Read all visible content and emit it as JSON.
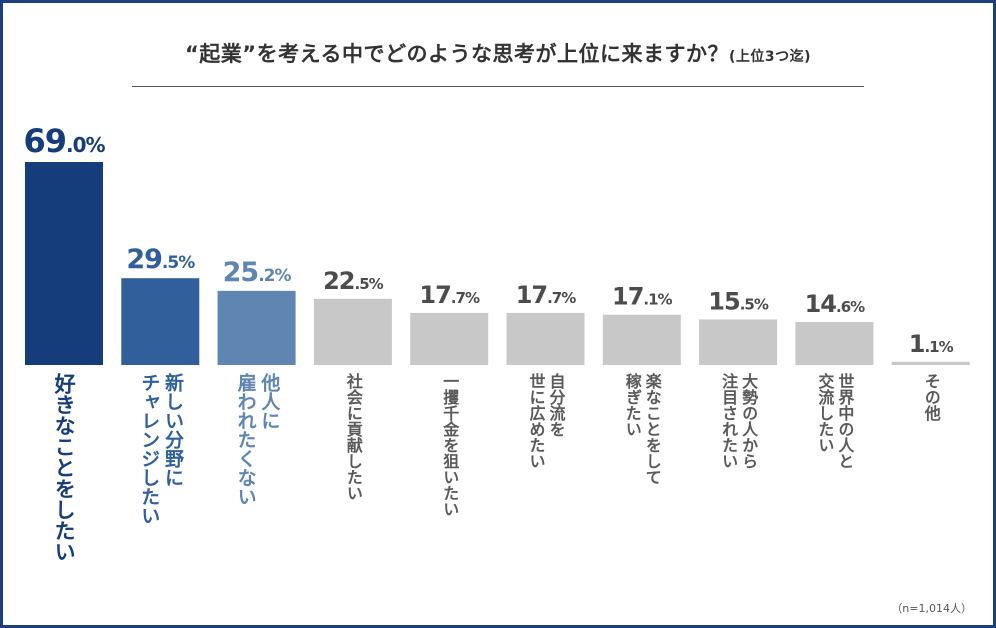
{
  "title": {
    "main": "“起業”を考える中でどのような思考が上位に来ますか？",
    "sub": "(上位3つ迄)"
  },
  "note": "（n=1,014人）",
  "colors": {
    "rank1": "#153c7b",
    "rank2": "#305f9b",
    "rank3": "#5f85b3",
    "other": "#c8c8c8",
    "value_other": "#4c4c4c",
    "label_other": "#5a5a5a",
    "frame": "#1b3f7f"
  },
  "chart_data": {
    "type": "bar",
    "title": "“起業”を考える中でどのような思考が上位に来ますか？(上位3つ迄)",
    "xlabel": "",
    "ylabel": "",
    "unit": "%",
    "ylim": [
      0,
      69
    ],
    "categories": [
      [
        "好きなことをしたい"
      ],
      [
        "新しい分野に",
        "チャレンジしたい"
      ],
      [
        "他人に",
        "雇われたくない"
      ],
      [
        "社会に貢献したい"
      ],
      [
        "一攫千金を狙いたい"
      ],
      [
        "自分流を",
        "世に広めたい"
      ],
      [
        "楽なことをして",
        "稼ぎたい"
      ],
      [
        "大勢の人から",
        "注目されたい"
      ],
      [
        "世界中の人と",
        "交流したい"
      ],
      [
        "その他"
      ]
    ],
    "values": [
      69.0,
      29.5,
      25.2,
      22.5,
      17.7,
      17.7,
      17.1,
      15.5,
      14.6,
      1.1
    ],
    "value_labels": [
      {
        "int": "69",
        "dec": ".0%"
      },
      {
        "int": "29",
        "dec": ".5%"
      },
      {
        "int": "25",
        "dec": ".2%"
      },
      {
        "int": "22",
        "dec": ".5%"
      },
      {
        "int": "17",
        "dec": ".7%"
      },
      {
        "int": "17",
        "dec": ".7%"
      },
      {
        "int": "17",
        "dec": ".1%"
      },
      {
        "int": "15",
        "dec": ".5%"
      },
      {
        "int": "14",
        "dec": ".6%"
      },
      {
        "int": "1",
        "dec": ".1%"
      }
    ],
    "grid": false,
    "legend": "none"
  }
}
